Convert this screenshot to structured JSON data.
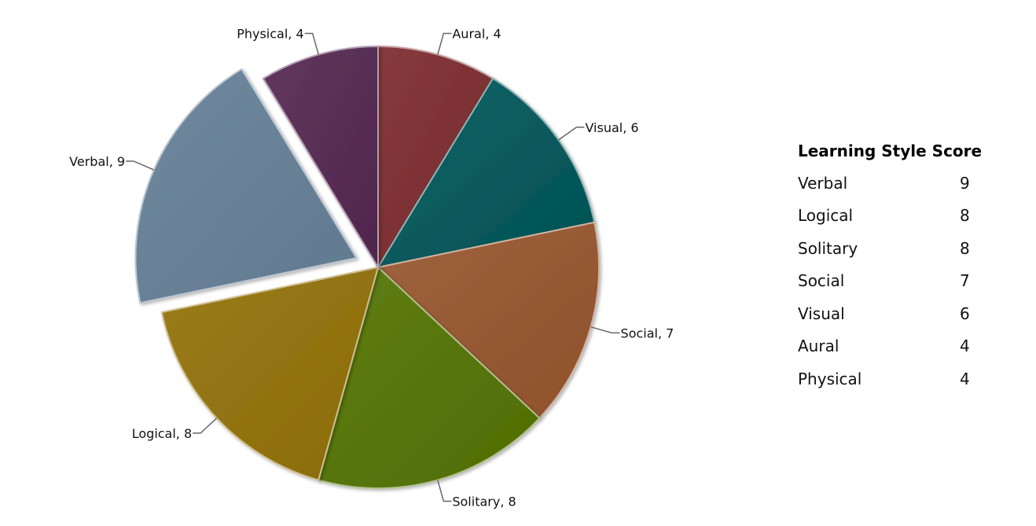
{
  "chart_data": {
    "type": "pie",
    "slices": [
      {
        "label": "Aural",
        "value": 4,
        "color": "#7b2a2d",
        "exploded": false
      },
      {
        "label": "Visual",
        "value": 6,
        "color": "#005558",
        "exploded": false
      },
      {
        "label": "Social",
        "value": 7,
        "color": "#96552d",
        "exploded": false
      },
      {
        "label": "Solitary",
        "value": 8,
        "color": "#527302",
        "exploded": false
      },
      {
        "label": "Logical",
        "value": 8,
        "color": "#917108",
        "exploded": false
      },
      {
        "label": "Verbal",
        "value": 9,
        "color": "#657f96",
        "exploded": true
      },
      {
        "label": "Physical",
        "value": 4,
        "color": "#532750",
        "exploded": false
      }
    ]
  },
  "legend": {
    "title": "Learning Style Score",
    "rows": [
      {
        "name": "Verbal",
        "score": "9"
      },
      {
        "name": "Logical",
        "score": "8"
      },
      {
        "name": "Solitary",
        "score": "8"
      },
      {
        "name": "Social",
        "score": "7"
      },
      {
        "name": "Visual",
        "score": "6"
      },
      {
        "name": "Aural",
        "score": "4"
      },
      {
        "name": "Physical",
        "score": "4"
      }
    ]
  }
}
